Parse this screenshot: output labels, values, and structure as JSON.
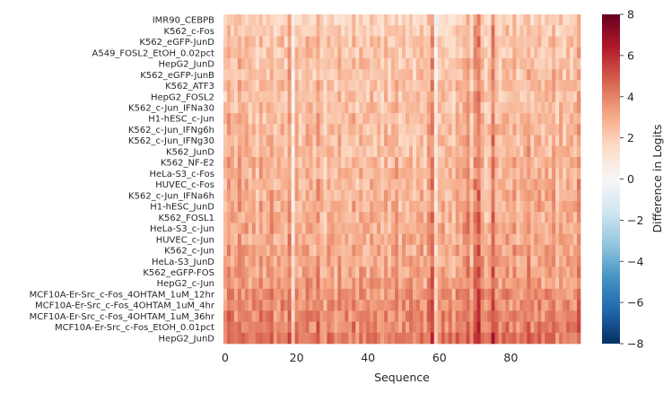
{
  "chart_data": {
    "type": "heatmap",
    "title": "",
    "xlabel": "Sequence",
    "ylabel": "",
    "colorbar_label": "Difference in Logits",
    "colormap": "RdBu_r",
    "vmin": -8,
    "vmax": 8,
    "n_columns": 100,
    "x_ticks": [
      0,
      20,
      40,
      60,
      80
    ],
    "colorbar_ticks": [
      8,
      6,
      4,
      2,
      0,
      -2,
      -4,
      -6,
      -8
    ],
    "rows": [
      "IMR90_CEBPB",
      "K562_c-Fos",
      "K562_eGFP-JunD",
      "A549_FOSL2_EtOH_0.02pct",
      "HepG2_JunD",
      "K562_eGFP-JunB",
      "K562_ATF3",
      "HepG2_FOSL2",
      "K562_c-Jun_IFNa30",
      "H1-hESC_c-Jun",
      "K562_c-Jun_IFNg6h",
      "K562_c-Jun_IFNg30",
      "K562_JunD",
      "K562_NF-E2",
      "HeLa-S3_c-Fos",
      "HUVEC_c-Fos",
      "K562_c-Jun_IFNa6h",
      "H1-hESC_JunD",
      "K562_FOSL1",
      "HeLa-S3_c-Jun",
      "HUVEC_c-Jun",
      "K562_c-Jun",
      "HeLa-S3_JunD",
      "K562_eGFP-FOS",
      "HepG2_c-Jun",
      "MCF10A-Er-Src_c-Fos_4OHTAM_1uM_12hr",
      "MCF10A-Er-Src_c-Fos_4OHTAM_1uM_4hr",
      "MCF10A-Er-Src_c-Fos_4OHTAM_1uM_36hr",
      "MCF10A-Er-Src_c-Fos_EtOH_0.01pct",
      "HepG2_JunD"
    ],
    "row_means_approx": [
      1.8,
      2.1,
      2.3,
      2.3,
      2.4,
      2.3,
      2.4,
      2.5,
      2.5,
      2.5,
      2.6,
      2.6,
      2.6,
      2.7,
      2.7,
      2.8,
      2.8,
      2.9,
      2.9,
      3.0,
      3.0,
      3.1,
      3.1,
      3.2,
      3.3,
      3.6,
      3.7,
      3.8,
      4.0,
      4.3
    ],
    "column_profile_approx": [
      2.5,
      3.5,
      3.0,
      2.8,
      3.4,
      2.9,
      3.1,
      2.6,
      3.0,
      2.4,
      3.2,
      2.7,
      2.9,
      3.3,
      2.6,
      2.8,
      3.1,
      2.5,
      3.8,
      1.2,
      3.0,
      2.4,
      2.8,
      3.2,
      2.9,
      2.6,
      3.4,
      2.7,
      2.3,
      3.0,
      2.8,
      2.5,
      3.1,
      2.6,
      2.9,
      2.7,
      3.2,
      2.4,
      3.0,
      2.8,
      2.6,
      3.1,
      2.7,
      2.9,
      2.4,
      3.0,
      2.6,
      2.8,
      3.2,
      2.5,
      2.9,
      2.7,
      3.1,
      2.6,
      2.8,
      3.0,
      2.5,
      3.3,
      4.2,
      1.4,
      2.7,
      3.0,
      2.6,
      2.9,
      2.4,
      3.1,
      2.8,
      3.4,
      3.8,
      2.5,
      4.0,
      4.6,
      3.2,
      2.4,
      2.8,
      4.4,
      3.0,
      2.6,
      2.9,
      3.1,
      2.7,
      3.3,
      2.6,
      2.8,
      3.0,
      3.5,
      2.7,
      2.9,
      3.2,
      2.6,
      3.0,
      2.8,
      3.4,
      2.5,
      3.1,
      2.7,
      3.0,
      2.9,
      2.8,
      3.6
    ]
  }
}
